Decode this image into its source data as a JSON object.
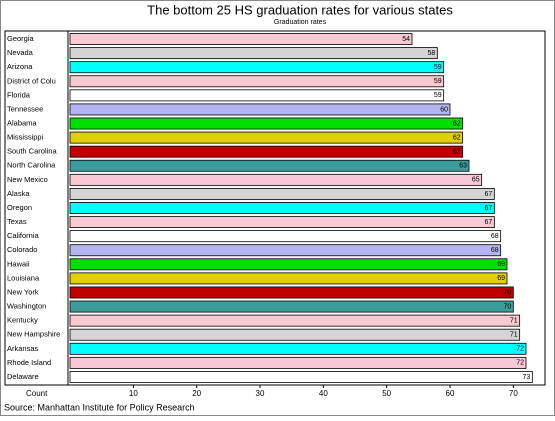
{
  "chart_data": {
    "type": "barh",
    "title": "The bottom 25 HS graduation rates for various states",
    "subtitle": "Graduation rates",
    "xlabel": "Count",
    "source": "Source: Manhattan Institute for Policy Research",
    "categories": [
      "Georgia",
      "Nevada",
      "Arizona",
      "District of Colu",
      "Florida",
      "Tennessee",
      "Alabama",
      "Mississippi",
      "South Carolina",
      "North Carolina",
      "New Mexico",
      "Alaska",
      "Oregon",
      "Texas",
      "California",
      "Colorado",
      "Hawaii",
      "Louisiana",
      "New York",
      "Washington",
      "Kentucky",
      "New Hampshire",
      "Arkansas",
      "Rhode Island",
      "Delaware"
    ],
    "values": [
      54,
      58,
      59,
      59,
      59,
      60,
      62,
      62,
      62,
      63,
      65,
      67,
      67,
      67,
      68,
      68,
      69,
      69,
      70,
      70,
      71,
      71,
      72,
      72,
      73
    ],
    "colors": [
      "#f6c9d3",
      "#d4d4d4",
      "#00ffff",
      "#f6c9d3",
      "#ffffff",
      "#b4b4f0",
      "#00e000",
      "#e0d000",
      "#c00000",
      "#3c9c9c",
      "#f6c9d3",
      "#d4d4d4",
      "#00ffff",
      "#f6c9d3",
      "#ffffff",
      "#b4b4f0",
      "#00e000",
      "#e0d000",
      "#c00000",
      "#3c9c9c",
      "#f6c9d3",
      "#d4d4d4",
      "#00ffff",
      "#f6c9d3",
      "#ffffff"
    ],
    "xlim": [
      0,
      75
    ],
    "xticks": [
      10,
      20,
      30,
      40,
      50,
      60,
      70
    ]
  }
}
